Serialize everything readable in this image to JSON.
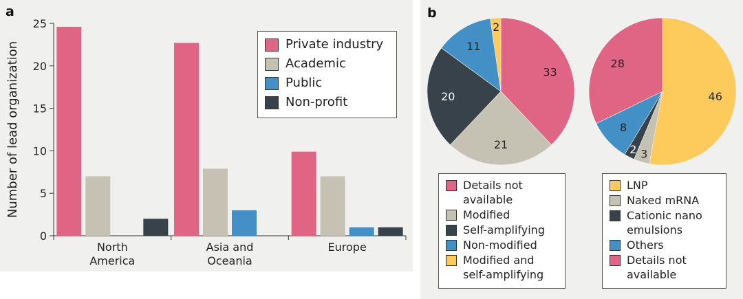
{
  "chart_data": [
    {
      "panel": "a",
      "type": "bar",
      "ylabel": "Number of lead organization",
      "ylim": [
        0,
        25
      ],
      "yticks": [
        0,
        5,
        10,
        15,
        20,
        25
      ],
      "categories": [
        "North\nAmerica",
        "Asia and\nOceania",
        "Europe"
      ],
      "series": [
        {
          "name": "Private industry",
          "color": "#e06585",
          "values": [
            24.6,
            22.7,
            9.9
          ]
        },
        {
          "name": "Academic",
          "color": "#c6c2b3",
          "values": [
            7.0,
            7.9,
            7.0
          ]
        },
        {
          "name": "Public",
          "color": "#4290c6",
          "values": [
            0,
            3.0,
            1.0
          ]
        },
        {
          "name": "Non-profit",
          "color": "#37424a",
          "values": [
            2.0,
            0,
            1.0
          ]
        }
      ],
      "legend_position": "top-right",
      "grid": false
    },
    {
      "panel": "b",
      "type": "pie",
      "pie_index": 1,
      "slices": [
        {
          "label": "Details not\navailable",
          "value": 33,
          "color": "#e06585"
        },
        {
          "label": "Modified",
          "value": 21,
          "color": "#c6c2b3"
        },
        {
          "label": "Self-amplifying",
          "value": 20,
          "color": "#37424a"
        },
        {
          "label": "Non-modified",
          "value": 11,
          "color": "#4290c6"
        },
        {
          "label": "Modified and\nself-amplifying",
          "value": 2,
          "color": "#fdcb5c"
        }
      ]
    },
    {
      "panel": "b",
      "type": "pie",
      "pie_index": 2,
      "slices": [
        {
          "label": "LNP",
          "value": 46,
          "color": "#fdcb5c"
        },
        {
          "label": "Naked mRNA",
          "value": 3,
          "color": "#c6c2b3"
        },
        {
          "label": "Cationic nano\nemulsions",
          "value": 2,
          "color": "#37424a"
        },
        {
          "label": "Others",
          "value": 8,
          "color": "#4290c6"
        },
        {
          "label": "Details not\navailable",
          "value": 28,
          "color": "#e06585"
        }
      ]
    }
  ],
  "panel_labels": {
    "a": "a",
    "b": "b"
  }
}
